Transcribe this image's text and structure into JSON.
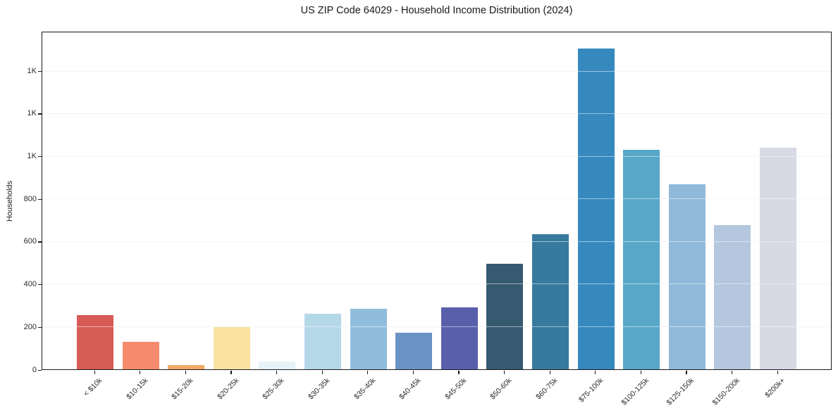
{
  "chart_data": {
    "type": "bar",
    "title": "US ZIP Code 64029 - Household Income Distribution (2024)",
    "xlabel": "",
    "ylabel": "Households",
    "categories": [
      "< $10k",
      "$10-15k",
      "$15-20k",
      "$20-25k",
      "$25-30k",
      "$30-35k",
      "$35-40k",
      "$40-45k",
      "$45-50k",
      "$50-60k",
      "$60-75k",
      "$75-100k",
      "$100-125k",
      "$125-150k",
      "$150-200k",
      "$200k+"
    ],
    "values": [
      255,
      130,
      20,
      198,
      35,
      261,
      285,
      172,
      291,
      498,
      636,
      1510,
      1032,
      870,
      678,
      1041
    ],
    "bar_colors": [
      "#d65c55",
      "#f58b6c",
      "#f2a963",
      "#fae2a2",
      "#e6f1f8",
      "#b5d8e8",
      "#90bddc",
      "#6b93c5",
      "#5a5fac",
      "#365a70",
      "#377a9e",
      "#3589be",
      "#58a7c9",
      "#90b9d9",
      "#b4c7de",
      "#d7d9e5"
    ],
    "ylim": [
      0,
      1585
    ],
    "yticks": {
      "values": [
        0,
        200,
        400,
        600,
        800,
        1000,
        1200,
        1400
      ],
      "labels": [
        "0",
        "200",
        "400",
        "600",
        "800",
        "1K",
        "1K",
        "1K"
      ]
    },
    "grid": "horizontal",
    "legend": "none",
    "colors": {
      "grid": "#e8e8e8",
      "spine": "#1a1a1a",
      "title_text": "#1a1a1a",
      "tick_text": "#2b2b2b",
      "background": "#ffffff"
    }
  }
}
